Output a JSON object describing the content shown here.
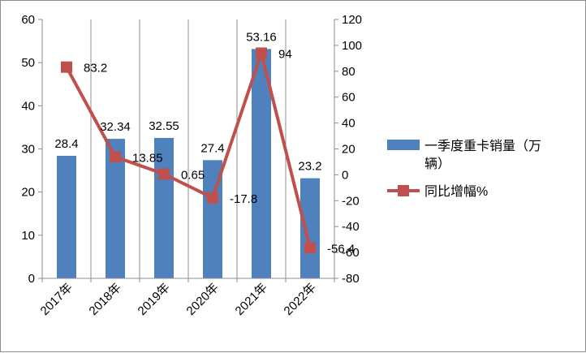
{
  "chart_data": {
    "type": "bar",
    "categories": [
      "2017年",
      "2018年",
      "2019年",
      "2020年",
      "2021年",
      "2022年"
    ],
    "series": [
      {
        "name": "一季度重卡销量（万辆）",
        "type": "bar",
        "axis": "left",
        "color": "#4f81bd",
        "values": [
          28.4,
          32.34,
          32.55,
          27.4,
          53.16,
          23.2
        ],
        "labels": [
          "28.4",
          "32.34",
          "32.55",
          "27.4",
          "53.16",
          "23.2"
        ]
      },
      {
        "name": "同比增幅%",
        "type": "line",
        "axis": "right",
        "color": "#c0504d",
        "values": [
          83.2,
          13.85,
          0.65,
          -17.8,
          94,
          -56.4
        ],
        "labels": [
          "83.2",
          "13.85",
          "0.65",
          "-17.8",
          "94",
          "-56.4"
        ]
      }
    ],
    "y_left": {
      "min": 0,
      "max": 60,
      "step": 10,
      "ticks": [
        "0",
        "10",
        "20",
        "30",
        "40",
        "50",
        "60"
      ]
    },
    "y_right": {
      "min": -80,
      "max": 120,
      "step": 20,
      "ticks": [
        "-80",
        "-60",
        "-40",
        "-20",
        "0",
        "20",
        "40",
        "60",
        "80",
        "100",
        "120"
      ]
    },
    "grid": "vertical-category-lines",
    "legend_position": "right",
    "legend": {
      "bar_line1": "一季度重卡销量（万",
      "bar_line2": "辆）",
      "line": "同比增幅%"
    }
  }
}
